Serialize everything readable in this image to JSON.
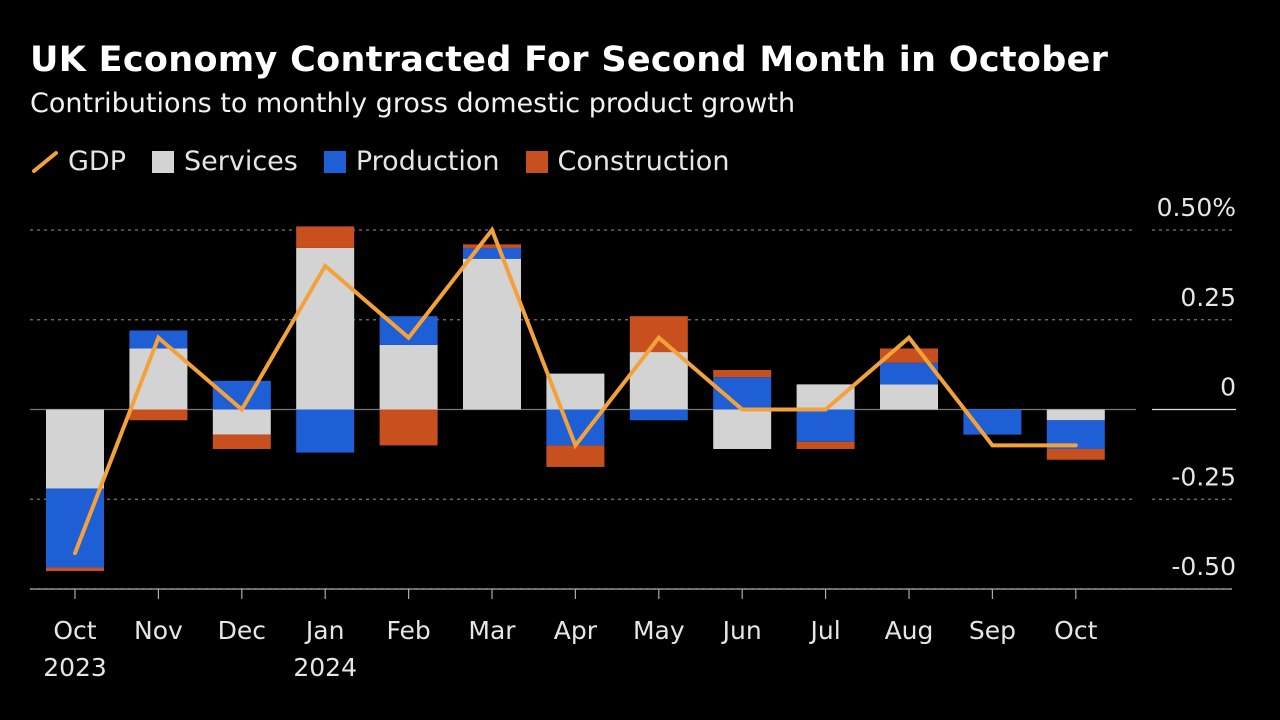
{
  "title": "UK Economy Contracted For Second Month in October",
  "subtitle": "Contributions to monthly gross domestic product growth",
  "legend": [
    {
      "label": "GDP",
      "key": "gdp",
      "color": "#f3a13a"
    },
    {
      "label": "Services",
      "key": "services",
      "color": "#d3d3d3"
    },
    {
      "label": "Production",
      "key": "production",
      "color": "#1f5fd6"
    },
    {
      "label": "Construction",
      "key": "construction",
      "color": "#c8501e"
    }
  ],
  "chart_data": {
    "type": "bar",
    "stacked": true,
    "categories": [
      "Oct 2023",
      "Nov",
      "Dec",
      "Jan 2024",
      "Feb",
      "Mar",
      "Apr",
      "May",
      "Jun",
      "Jul",
      "Aug",
      "Sep",
      "Oct"
    ],
    "x_tick_labels": [
      [
        "Oct",
        "2023"
      ],
      [
        "Nov"
      ],
      [
        "Dec"
      ],
      [
        "Jan",
        "2024"
      ],
      [
        "Feb"
      ],
      [
        "Mar"
      ],
      [
        "Apr"
      ],
      [
        "May"
      ],
      [
        "Jun"
      ],
      [
        "Jul"
      ],
      [
        "Aug"
      ],
      [
        "Sep"
      ],
      [
        "Oct"
      ]
    ],
    "series": [
      {
        "name": "Services",
        "values": [
          -0.22,
          0.17,
          -0.07,
          0.45,
          0.18,
          0.42,
          0.1,
          0.16,
          -0.11,
          0.07,
          0.07,
          0.0,
          -0.03
        ]
      },
      {
        "name": "Production",
        "values": [
          -0.22,
          0.05,
          0.08,
          -0.12,
          0.08,
          0.03,
          -0.1,
          -0.03,
          0.09,
          -0.09,
          0.06,
          -0.07,
          -0.08
        ]
      },
      {
        "name": "Construction",
        "values": [
          -0.01,
          -0.03,
          -0.04,
          0.06,
          -0.1,
          0.01,
          -0.06,
          0.1,
          0.02,
          -0.02,
          0.04,
          0.0,
          -0.03
        ]
      }
    ],
    "line": {
      "name": "GDP",
      "values": [
        -0.4,
        0.2,
        0.0,
        0.4,
        0.2,
        0.5,
        -0.1,
        0.2,
        0.0,
        0.0,
        0.2,
        -0.1,
        -0.1
      ]
    },
    "y_ticks": [
      {
        "value": 0.5,
        "label": "0.50%"
      },
      {
        "value": 0.25,
        "label": "0.25"
      },
      {
        "value": 0,
        "label": "0"
      },
      {
        "value": -0.25,
        "label": "-0.25"
      },
      {
        "value": -0.5,
        "label": "-0.50"
      }
    ],
    "ylim": [
      -0.5,
      0.5
    ],
    "grid": true,
    "legend_position": "top-left"
  }
}
